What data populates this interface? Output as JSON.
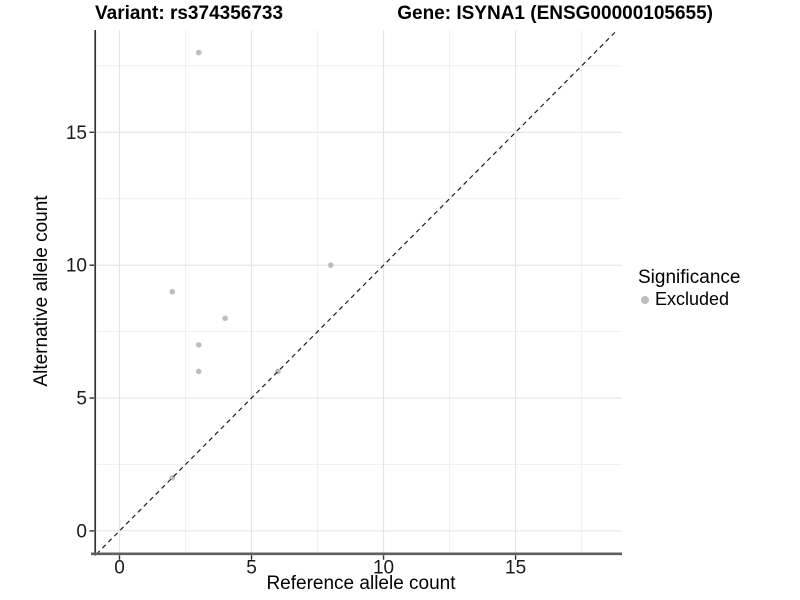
{
  "chart_data": {
    "type": "scatter",
    "title_left": "Variant: rs374356733",
    "title_right": "Gene: ISYNA1 (ENSG00000105655)",
    "xlabel": "Reference allele count",
    "ylabel": "Alternative allele count",
    "xlim": [
      -0.89,
      19.03
    ],
    "ylim": [
      -0.87,
      18.85
    ],
    "x_ticks": [
      0,
      5,
      10,
      15
    ],
    "y_ticks": [
      0,
      5,
      10,
      15
    ],
    "x_minor_gridlines": [
      2.5,
      7.5,
      12.5,
      17.5
    ],
    "y_minor_gridlines": [
      2.5,
      7.5,
      12.5,
      17.5
    ],
    "grid": true,
    "legend": {
      "title": "Significance",
      "position": "right"
    },
    "series": [
      {
        "name": "Excluded",
        "color": "#bdbdbd",
        "points": [
          [
            2,
            2
          ],
          [
            2,
            9
          ],
          [
            3,
            6
          ],
          [
            3,
            7
          ],
          [
            3,
            18
          ],
          [
            4,
            8
          ],
          [
            6,
            6
          ],
          [
            8,
            10
          ]
        ]
      }
    ],
    "reference_line": {
      "type": "identity",
      "slope": 1,
      "intercept": 0,
      "style": "dashed",
      "color": "#1c1c1c"
    }
  },
  "colors": {
    "background": "#ffffff",
    "grid_major": "#e4e4e4",
    "grid_minor": "#efefef",
    "axis_line_y": "#333333",
    "axis_line_x": "#5f5f5f",
    "tick_mark": "#333333",
    "tick_label": "#1a1a1a",
    "point": "#bdbdbd"
  }
}
